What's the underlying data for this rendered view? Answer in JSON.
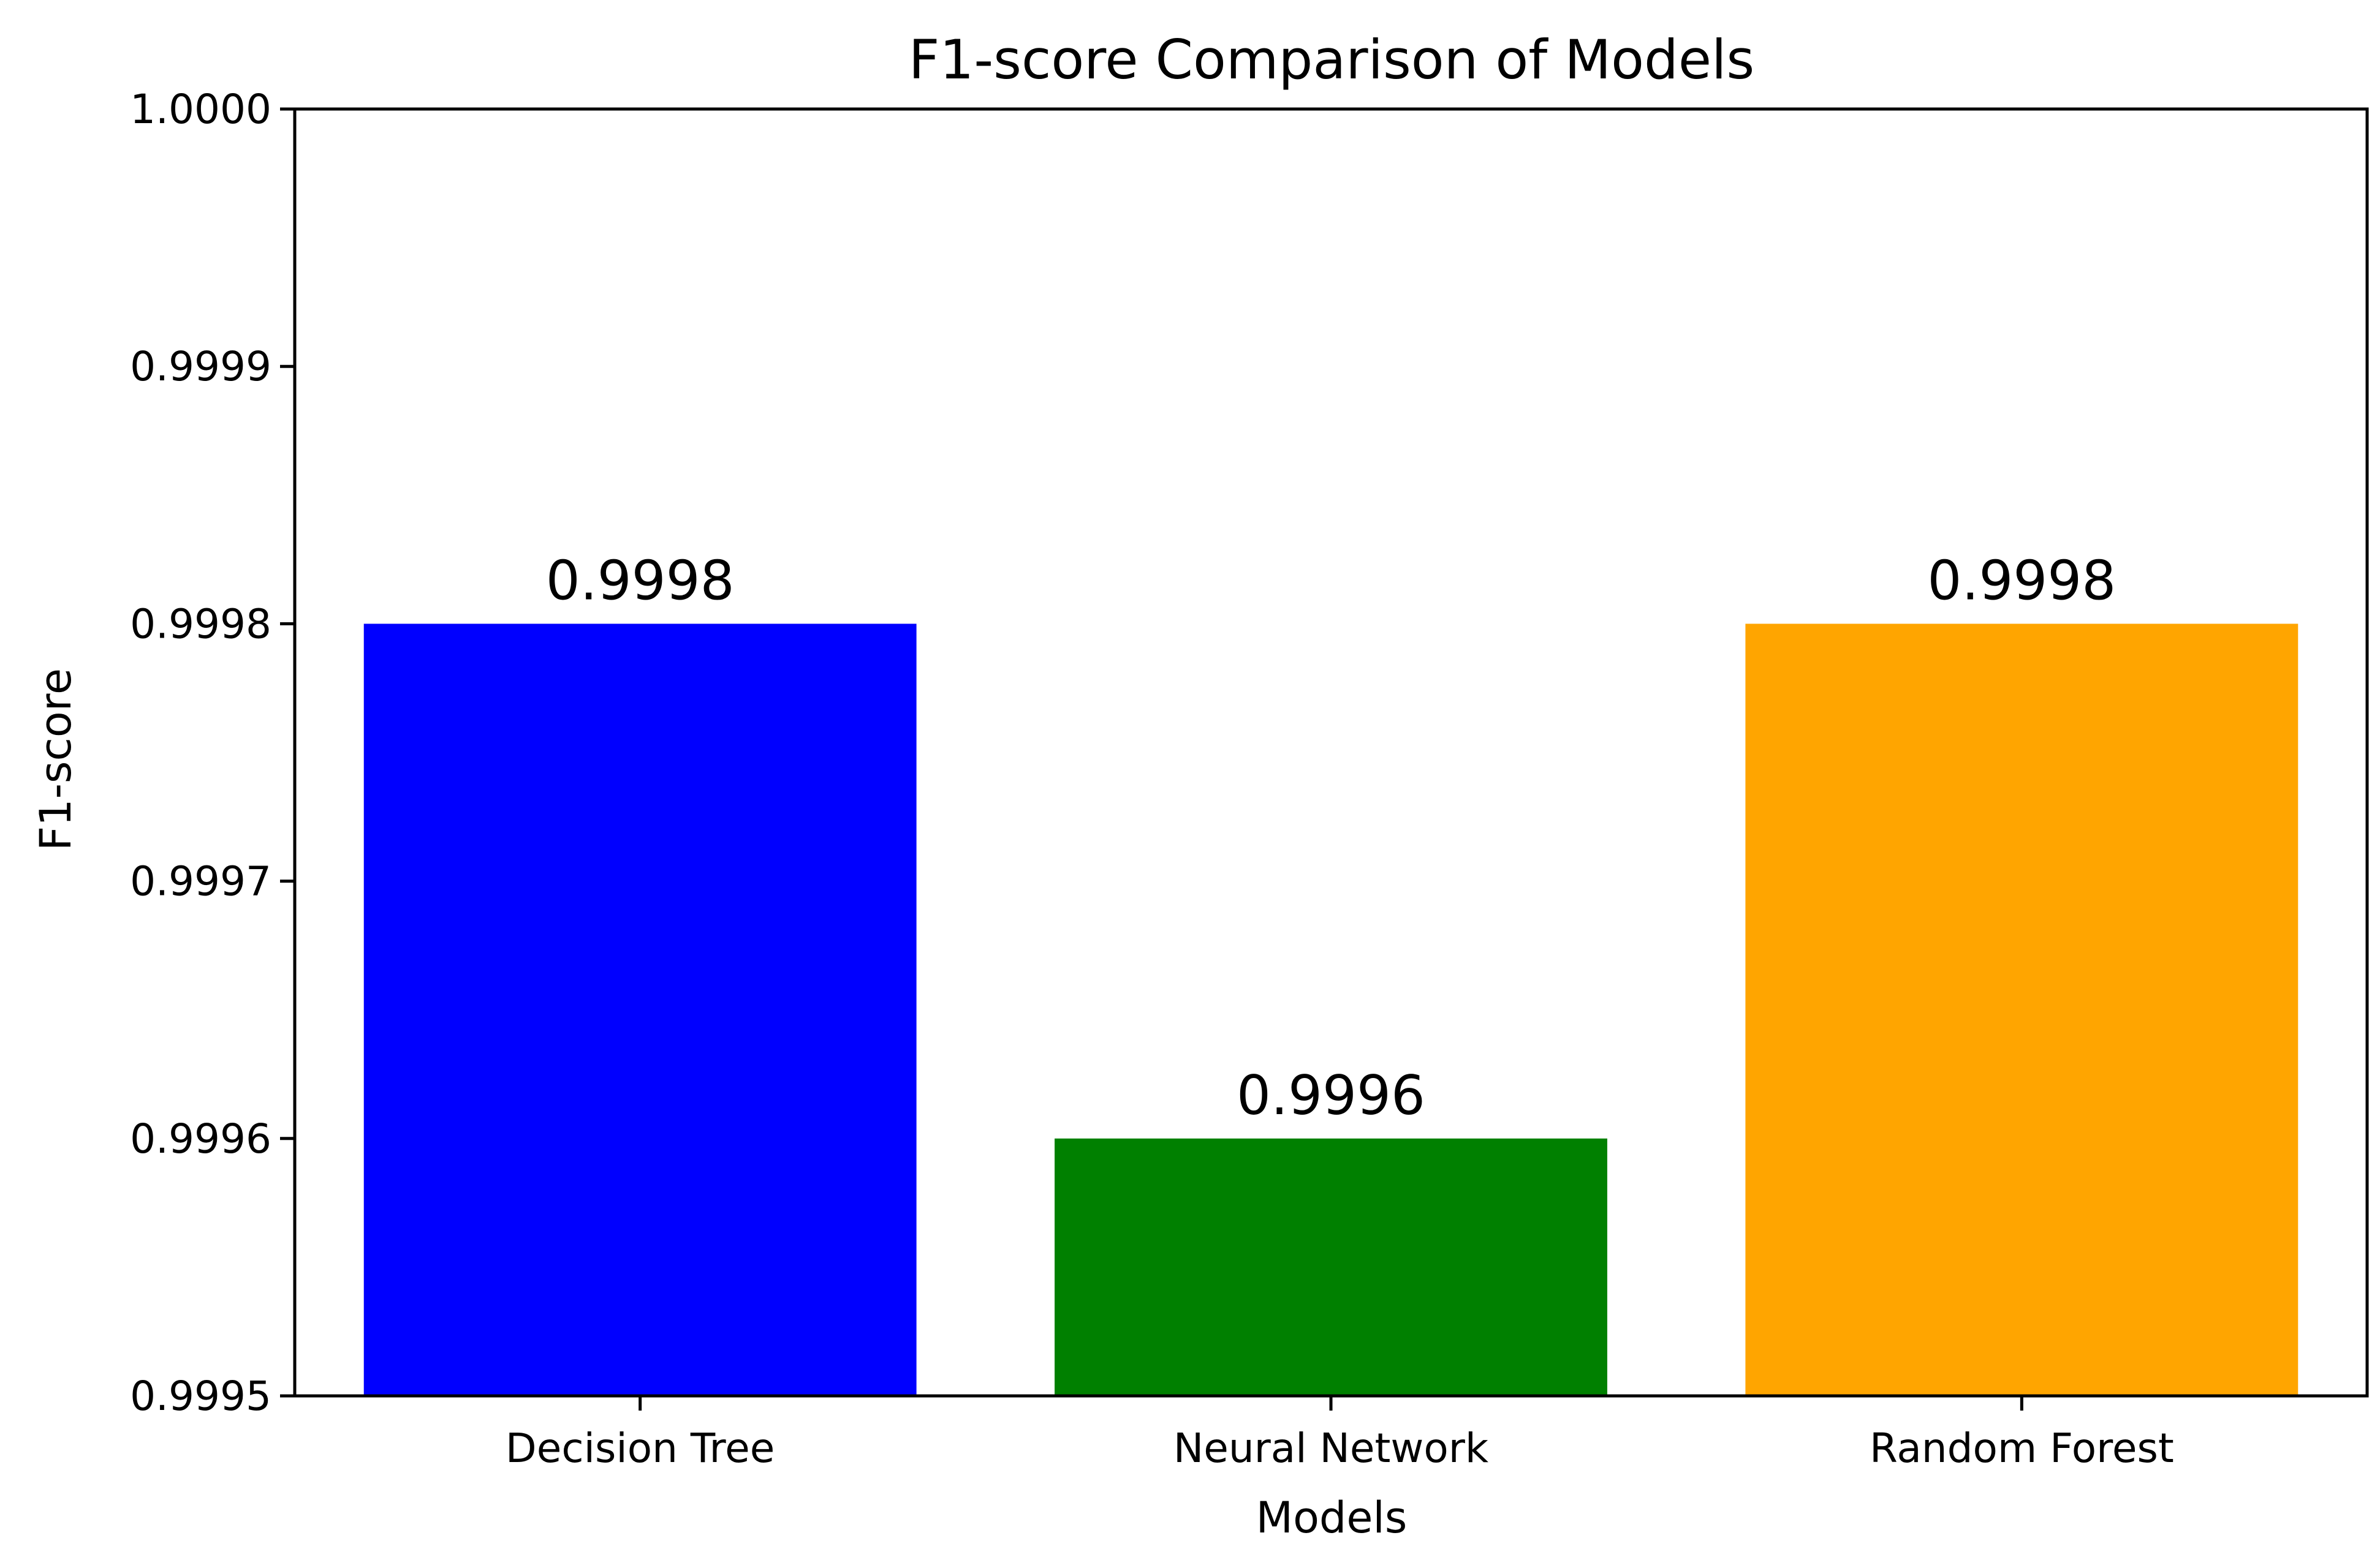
{
  "chart_data": {
    "type": "bar",
    "title": "F1-score Comparison of Models",
    "xlabel": "Models",
    "ylabel": "F1-score",
    "categories": [
      "Decision Tree",
      "Neural Network",
      "Random Forest"
    ],
    "values": [
      0.9998,
      0.9996,
      0.9998
    ],
    "data_labels": [
      "0.9998",
      "0.9996",
      "0.9998"
    ],
    "colors": [
      "#0000ff",
      "#008000",
      "#ffa500"
    ],
    "ylim": [
      0.9995,
      1.0
    ],
    "yticks": [
      0.9995,
      0.9996,
      0.9997,
      0.9998,
      0.9999,
      1.0
    ],
    "ytick_labels": [
      "0.9995",
      "0.9996",
      "0.9997",
      "0.9998",
      "0.9999",
      "1.0000"
    ],
    "grid": false,
    "legend": "none"
  }
}
